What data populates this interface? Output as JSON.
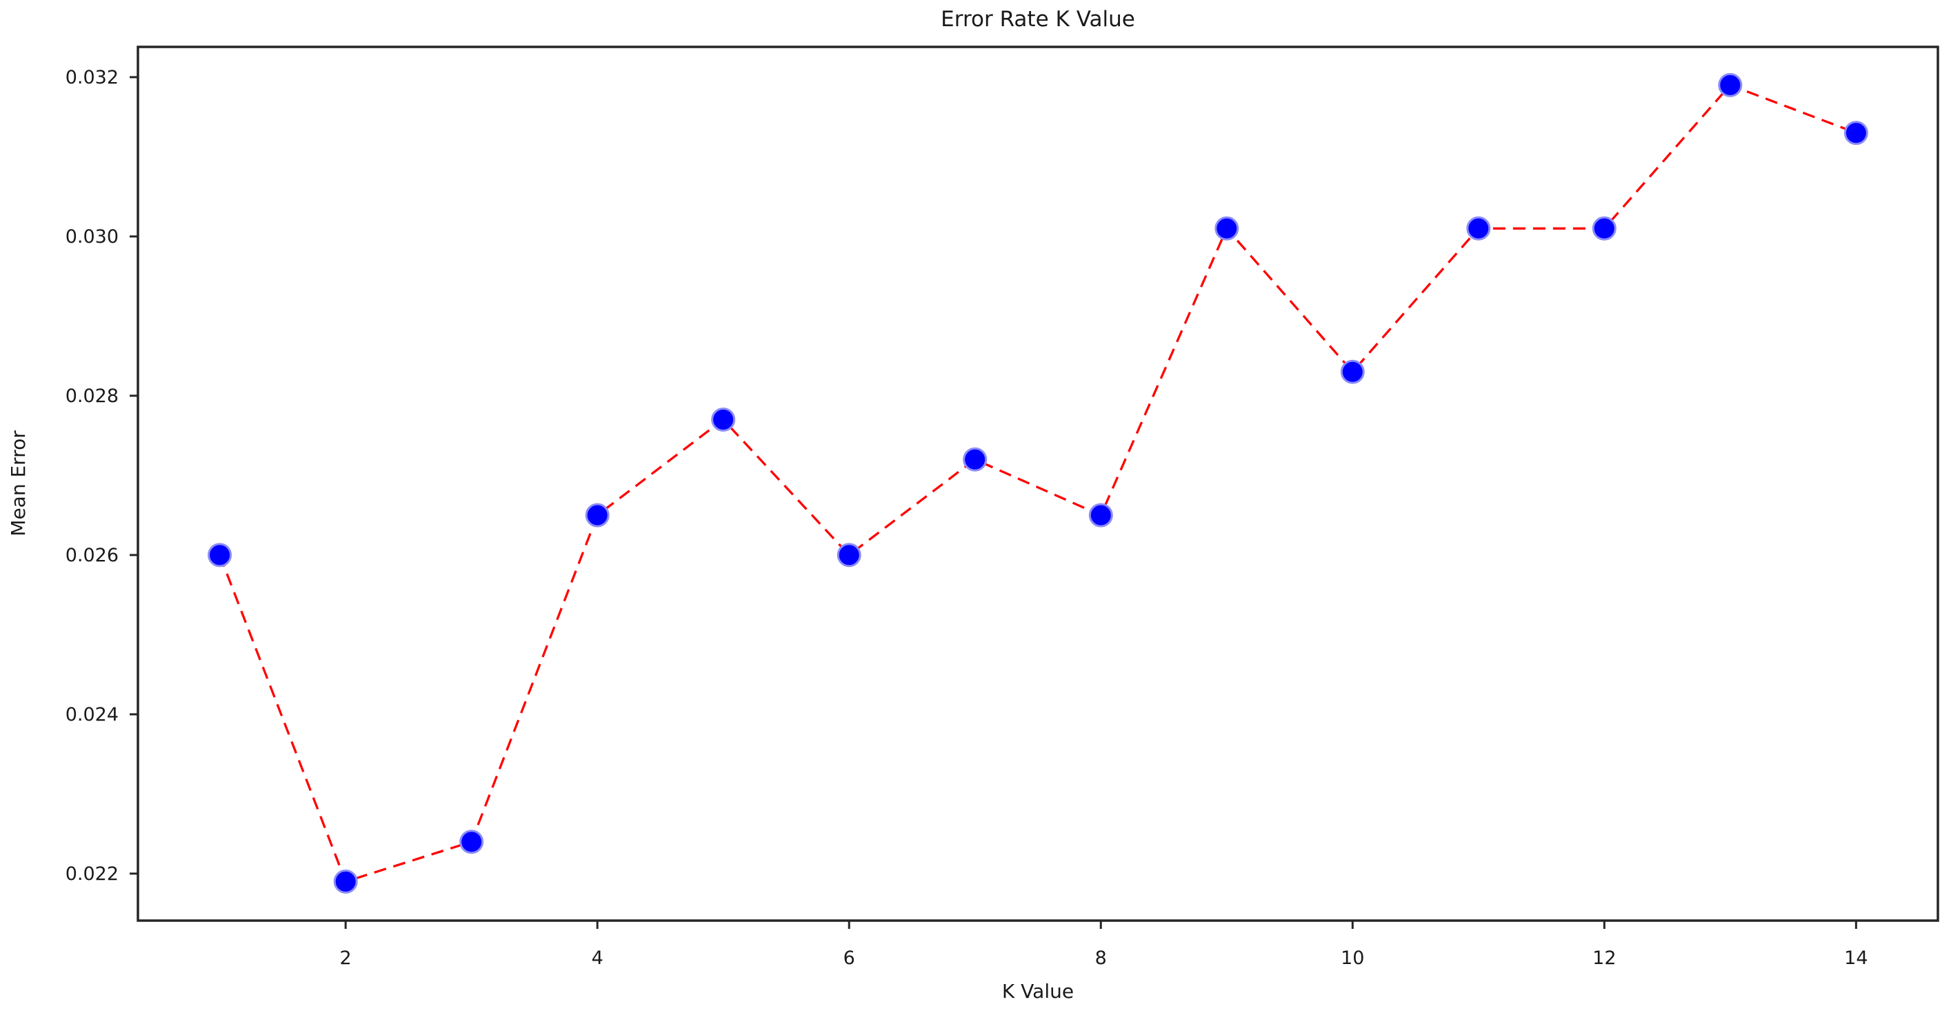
{
  "figure": {
    "title": "Error Rate K Value",
    "xlabel": "K Value",
    "ylabel": "Mean Error"
  },
  "chart_data": {
    "type": "line",
    "title": "Error Rate K Value",
    "xlabel": "K Value",
    "ylabel": "Mean Error",
    "series": [
      {
        "name": "mean-error-vs-k",
        "x": [
          1,
          2,
          3,
          4,
          5,
          6,
          7,
          8,
          9,
          10,
          11,
          12,
          13,
          14
        ],
        "y": [
          0.026,
          0.0219,
          0.0224,
          0.0265,
          0.0277,
          0.026,
          0.0272,
          0.0265,
          0.0301,
          0.0283,
          0.0301,
          0.0301,
          0.0319,
          0.0313
        ]
      }
    ],
    "xlim": [
      0.35,
      14.65
    ],
    "ylim": [
      0.02141,
      0.03238
    ],
    "xticks": [
      2,
      4,
      6,
      8,
      10,
      12,
      14
    ],
    "xtick_labels": [
      "2",
      "4",
      "6",
      "8",
      "10",
      "12",
      "14"
    ],
    "yticks": [
      0.022,
      0.024,
      0.026,
      0.028,
      0.03,
      0.032
    ],
    "ytick_labels": [
      "0.022",
      "0.024",
      "0.026",
      "0.028",
      "0.030",
      "0.032"
    ],
    "grid": false,
    "legend": null,
    "line": {
      "color": "#ff0000",
      "style": "dashed",
      "width": 3.3,
      "dash": [
        18,
        11
      ]
    },
    "marker": {
      "shape": "circle",
      "fill": "#0000ff",
      "edge": "#8c8cfa",
      "edge_width": 3,
      "radius": 16
    },
    "spine_color": "#262626",
    "tick_color": "#262626",
    "text_color": "#1a1a1a",
    "background": "#ffffff"
  }
}
